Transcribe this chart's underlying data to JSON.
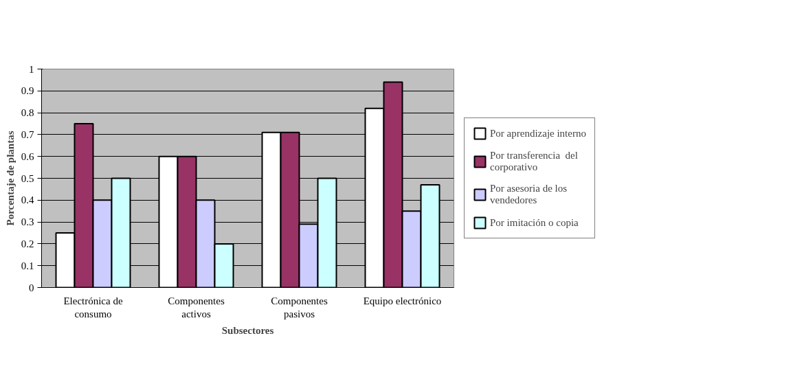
{
  "chart_data": {
    "type": "bar",
    "xlabel": "Subsectores",
    "ylabel": "Porcentaje de plantas",
    "categories": [
      "Electrónica de consumo",
      "Componentes activos",
      "Componentes pasivos",
      "Equipo electrónico"
    ],
    "series": [
      {
        "name": "Por aprendizaje interno",
        "color": "#ffffff",
        "values": [
          0.25,
          0.6,
          0.71,
          0.82
        ]
      },
      {
        "name": "Por transferencia  del corporativo",
        "color": "#993366",
        "values": [
          0.75,
          0.6,
          0.71,
          0.94
        ]
      },
      {
        "name": "Por asesoria de los vendedores",
        "color": "#ccccff",
        "values": [
          0.4,
          0.4,
          0.29,
          0.35
        ]
      },
      {
        "name": "Por imitación o copia",
        "color": "#ccffff",
        "values": [
          0.5,
          0.2,
          0.5,
          0.47
        ]
      }
    ],
    "ylim": [
      0,
      1
    ],
    "yticks": [
      0,
      0.1,
      0.2,
      0.3,
      0.4,
      0.5,
      0.6,
      0.7,
      0.8,
      0.9,
      1
    ],
    "grid": "y",
    "legend": "right"
  }
}
